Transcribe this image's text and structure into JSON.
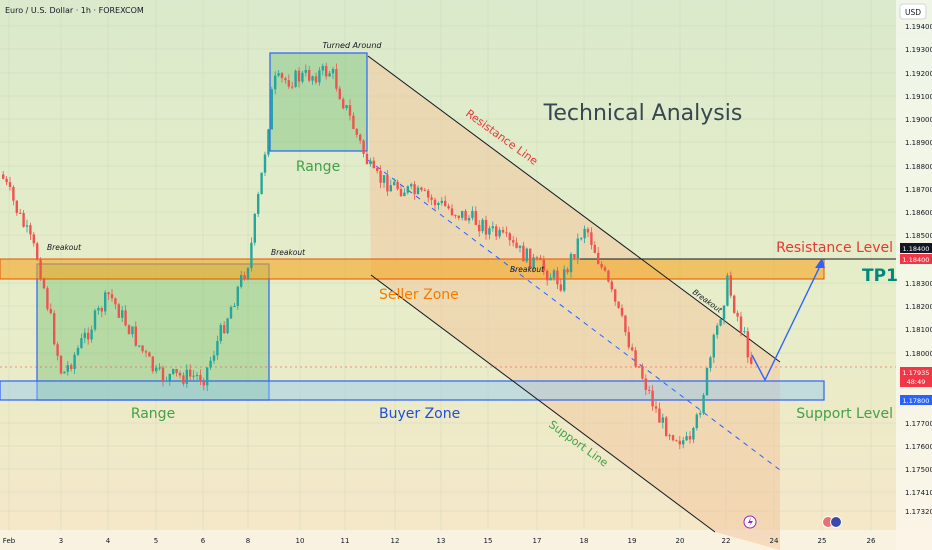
{
  "header": {
    "symbol_title": "Euro / U.S. Dollar · 1h · FOREXCOM",
    "currency_button": "USD"
  },
  "chart_data": {
    "type": "candlestick",
    "title": "Technical Analysis",
    "x_axis": {
      "tick_labels": [
        "Feb",
        "3",
        "4",
        "5",
        "6",
        "8",
        "10",
        "11",
        "12",
        "13",
        "15",
        "17",
        "18",
        "19",
        "20",
        "22",
        "24",
        "25",
        "26"
      ]
    },
    "y_axis": {
      "range": [
        1.1732,
        1.194
      ],
      "tick_labels": [
        "1.19400",
        "1.19300",
        "1.19200",
        "1.19100",
        "1.19000",
        "1.18900",
        "1.18800",
        "1.18700",
        "1.18600",
        "1.18500",
        "1.18300",
        "1.18200",
        "1.18100",
        "1.18000",
        "1.17700",
        "1.17600",
        "1.17500",
        "1.17410",
        "1.17320"
      ],
      "price_tags": [
        {
          "value": "1.18400",
          "color": "#131722"
        },
        {
          "value": "1.18400",
          "color": "#f23645"
        },
        {
          "value": "1.17935",
          "sub": "48:49",
          "color": "#f23645"
        },
        {
          "value": "1.17800",
          "color": "#2962ff"
        }
      ]
    },
    "approx_price_path": [
      {
        "time": "Feb 2",
        "price": 1.1876
      },
      {
        "time": "Feb 2",
        "price": 1.184
      },
      {
        "time": "Feb 3",
        "price": 1.179
      },
      {
        "time": "Feb 4",
        "price": 1.1825
      },
      {
        "time": "Feb 5",
        "price": 1.179
      },
      {
        "time": "Feb 6",
        "price": 1.179
      },
      {
        "time": "Feb 8",
        "price": 1.184
      },
      {
        "time": "Feb 9",
        "price": 1.188
      },
      {
        "time": "Feb 10",
        "price": 1.1915
      },
      {
        "time": "Feb 11",
        "price": 1.192
      },
      {
        "time": "Feb 12",
        "price": 1.1875
      },
      {
        "time": "Feb 13",
        "price": 1.1865
      },
      {
        "time": "Feb 15",
        "price": 1.1855
      },
      {
        "time": "Feb 17",
        "price": 1.183
      },
      {
        "time": "Feb 18",
        "price": 1.1855
      },
      {
        "time": "Feb 19",
        "price": 1.18
      },
      {
        "time": "Feb 20",
        "price": 1.177
      },
      {
        "time": "Feb 21",
        "price": 1.176
      },
      {
        "time": "Feb 22",
        "price": 1.183
      },
      {
        "time": "Feb 23",
        "price": 1.1794
      }
    ],
    "annotations": {
      "analysis_title": "Technical Analysis",
      "turned_around": "Turned Around",
      "range_left": "Range",
      "range_top": "Range",
      "breakout_1": "Breakout",
      "breakout_2": "Breakout",
      "breakout_3": "Breakout",
      "breakout_4": "Breakout",
      "resistance_line": "Resistance Line",
      "support_line": "Support Line",
      "seller_zone": "Seller Zone",
      "buyer_zone": "Buyer Zone",
      "resistance_level": "Resistance Level",
      "support_level": "Support Level",
      "tp1": "TP1"
    },
    "colors": {
      "bull": "#26a69a",
      "bear": "#ef5350",
      "seller_zone": "#f5a623",
      "buyer_zone": "#2962ff",
      "range_fill": "#4caf50",
      "channel_fill": "#f2c9a0",
      "resistance_text": "#e53935",
      "support_text": "#43a047",
      "tp1_text": "#00897b"
    }
  }
}
